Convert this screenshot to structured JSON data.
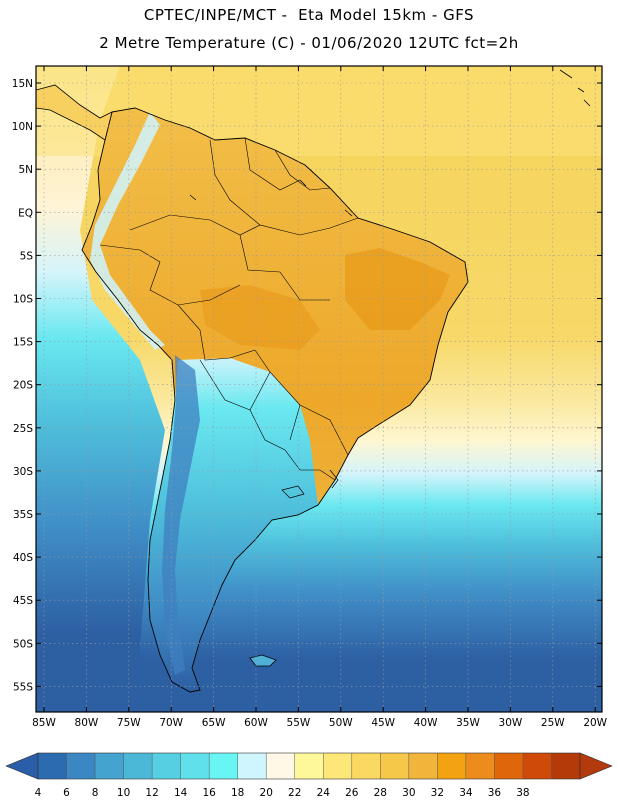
{
  "header": {
    "line1": "CPTEC/INPE/MCT -  Eta Model 15km - GFS",
    "line2": "2 Metre Temperature (C) - 01/06/2020 12UTC fct=2h"
  },
  "map": {
    "lat_labels": [
      "15N",
      "10N",
      "5N",
      "EQ",
      "5S",
      "10S",
      "15S",
      "20S",
      "25S",
      "30S",
      "35S",
      "40S",
      "45S",
      "50S",
      "55S"
    ],
    "lon_labels": [
      "85W",
      "80W",
      "75W",
      "70W",
      "65W",
      "60W",
      "55W",
      "50W",
      "45W",
      "40W",
      "35W",
      "30W",
      "25W",
      "20W"
    ],
    "colorbar": {
      "ticks": [
        "4",
        "6",
        "8",
        "10",
        "12",
        "14",
        "16",
        "18",
        "20",
        "22",
        "24",
        "26",
        "28",
        "30",
        "32",
        "34",
        "36",
        "38"
      ],
      "colors": [
        "#2d6bb0",
        "#3a87c3",
        "#44a3cf",
        "#4cb8d8",
        "#56cfe2",
        "#5fe0ea",
        "#6af5f5",
        "#cff5ff",
        "#fff8e6",
        "#fff89a",
        "#fde779",
        "#fad862",
        "#f6c84a",
        "#f0b53a",
        "#f3a312",
        "#ec8c1d",
        "#e0660a",
        "#cf4a08",
        "#b43a0a"
      ],
      "low_arrow_color": "#2a5ea8",
      "high_arrow_color": "#b23a0c"
    },
    "colors": {
      "ocean_cold": "#2d5fa3",
      "ocean_cool": "#3f8cc6",
      "ocean_mild": "#4fc0dc",
      "ocean_cyan": "#6ae8f0",
      "ocean_pale": "#d5f4fb",
      "ocean_warm": "#fbe89a",
      "ocean_hot": "#f6d45a",
      "land_hot": "#f0b53a",
      "land_very_hot": "#e99a1a",
      "andes": "#3f7fc0",
      "patagonia": "#4c9fd2"
    }
  }
}
